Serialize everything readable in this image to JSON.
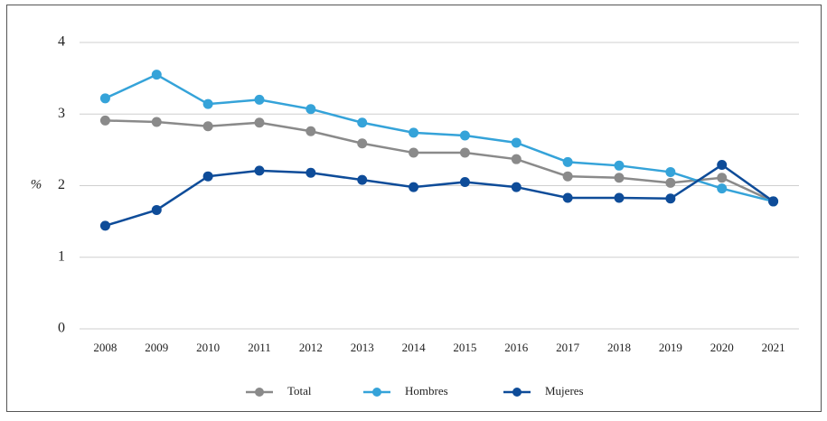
{
  "chart_data": {
    "type": "line",
    "y_label": "%",
    "categories": [
      "2008",
      "2009",
      "2010",
      "2011",
      "2012",
      "2013",
      "2014",
      "2015",
      "2016",
      "2017",
      "2018",
      "2019",
      "2020",
      "2021"
    ],
    "series": [
      {
        "name": "Total",
        "color": "#8a8a8a",
        "values": [
          2.91,
          2.89,
          2.83,
          2.88,
          2.76,
          2.59,
          2.46,
          2.46,
          2.37,
          2.13,
          2.11,
          2.04,
          2.11,
          1.78
        ]
      },
      {
        "name": "Hombres",
        "color": "#35a3d9",
        "values": [
          3.22,
          3.55,
          3.14,
          3.2,
          3.07,
          2.88,
          2.74,
          2.7,
          2.6,
          2.33,
          2.28,
          2.19,
          1.96,
          1.78
        ]
      },
      {
        "name": "Mujeres",
        "color": "#0e4c99",
        "values": [
          1.44,
          1.66,
          2.13,
          2.21,
          2.18,
          2.08,
          1.98,
          2.05,
          1.98,
          1.83,
          1.83,
          1.82,
          2.29,
          1.78
        ]
      }
    ],
    "ylim": [
      0,
      4
    ],
    "yticks": [
      0,
      1,
      2,
      3,
      4
    ],
    "grid": true,
    "legend": "bottom"
  }
}
